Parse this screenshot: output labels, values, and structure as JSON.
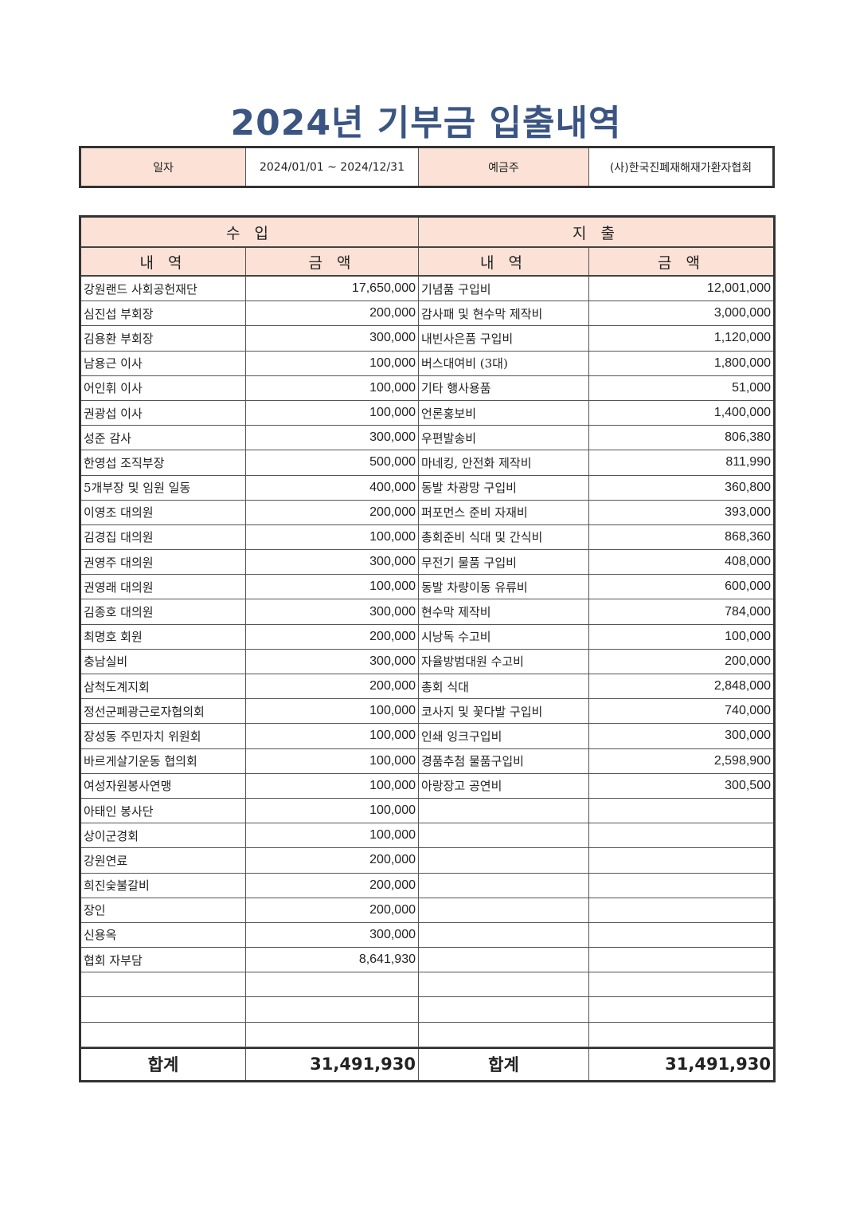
{
  "title": "2024년 기부금 입출내역",
  "info": {
    "date_label": "일자",
    "date_value": "2024/01/01 ~ 2024/12/31",
    "holder_label": "예금주",
    "holder_value": "(사)한국진폐재해재가환자협회"
  },
  "colors": {
    "header_bg": "#fbe1d6",
    "title": "#3b5583"
  },
  "sections": {
    "income": "수 입",
    "expense": "지 출"
  },
  "columns": {
    "item": "내 역",
    "amount": "금 액"
  },
  "income": [
    {
      "item": "강원랜드 사회공헌재단",
      "amount": "17,650,000"
    },
    {
      "item": "심진섭 부회장",
      "amount": "200,000"
    },
    {
      "item": "김용환 부회장",
      "amount": "300,000"
    },
    {
      "item": "남용근 이사",
      "amount": "100,000"
    },
    {
      "item": "어인휘 이사",
      "amount": "100,000"
    },
    {
      "item": "권광섭 이사",
      "amount": "100,000"
    },
    {
      "item": "성준 감사",
      "amount": "300,000"
    },
    {
      "item": "한영섭 조직부장",
      "amount": "500,000"
    },
    {
      "item": "5개부장 및 임원 일동",
      "amount": "400,000"
    },
    {
      "item": "이영조 대의원",
      "amount": "200,000"
    },
    {
      "item": "김경집 대의원",
      "amount": "100,000"
    },
    {
      "item": "권영주 대의원",
      "amount": "300,000"
    },
    {
      "item": "권영래 대의원",
      "amount": "100,000"
    },
    {
      "item": "김종호 대의원",
      "amount": "300,000"
    },
    {
      "item": "최명호 회원",
      "amount": "200,000"
    },
    {
      "item": "충남실비",
      "amount": "300,000"
    },
    {
      "item": "삼척도계지회",
      "amount": "200,000"
    },
    {
      "item": "정선군폐광근로자협의회",
      "amount": "100,000"
    },
    {
      "item": "장성동 주민자치 위원회",
      "amount": "100,000"
    },
    {
      "item": "바르게살기운동 협의회",
      "amount": "100,000"
    },
    {
      "item": "여성자원봉사연맹",
      "amount": "100,000"
    },
    {
      "item": "아태인 봉사단",
      "amount": "100,000"
    },
    {
      "item": "상이군경회",
      "amount": "100,000"
    },
    {
      "item": "강원연료",
      "amount": "200,000"
    },
    {
      "item": "희진숯불갈비",
      "amount": "200,000"
    },
    {
      "item": "장인",
      "amount": "200,000"
    },
    {
      "item": "신용옥",
      "amount": "300,000"
    },
    {
      "item": "협회 자부담",
      "amount": "8,641,930"
    }
  ],
  "expense": [
    {
      "item": "기념품 구입비",
      "amount": "12,001,000"
    },
    {
      "item": "감사패 및 현수막 제작비",
      "amount": "3,000,000"
    },
    {
      "item": "내빈사은품 구입비",
      "amount": "1,120,000"
    },
    {
      "item": "버스대여비 (3대)",
      "amount": "1,800,000"
    },
    {
      "item": "기타 행사용품",
      "amount": "51,000"
    },
    {
      "item": "언론홍보비",
      "amount": "1,400,000"
    },
    {
      "item": "우편발송비",
      "amount": "806,380"
    },
    {
      "item": "마네킹, 안전화 제작비",
      "amount": "811,990"
    },
    {
      "item": "동발 차광망 구입비",
      "amount": "360,800"
    },
    {
      "item": "퍼포먼스 준비 자재비",
      "amount": "393,000"
    },
    {
      "item": "총회준비 식대 및 간식비",
      "amount": "868,360"
    },
    {
      "item": "무전기 물품 구입비",
      "amount": "408,000"
    },
    {
      "item": "동발 차량이동 유류비",
      "amount": "600,000"
    },
    {
      "item": "현수막 제작비",
      "amount": "784,000"
    },
    {
      "item": "시낭독 수고비",
      "amount": "100,000"
    },
    {
      "item": "자율방범대원 수고비",
      "amount": "200,000"
    },
    {
      "item": "총회 식대",
      "amount": "2,848,000"
    },
    {
      "item": "코사지 및 꽃다발 구입비",
      "amount": "740,000"
    },
    {
      "item": "인쇄 잉크구입비",
      "amount": "300,000"
    },
    {
      "item": "경품추첨 물품구입비",
      "amount": "2,598,900"
    },
    {
      "item": "아랑장고 공연비",
      "amount": "300,500"
    }
  ],
  "total": {
    "income_label": "합계",
    "income_amount": "31,491,930",
    "expense_label": "합계",
    "expense_amount": "31,491,930"
  }
}
